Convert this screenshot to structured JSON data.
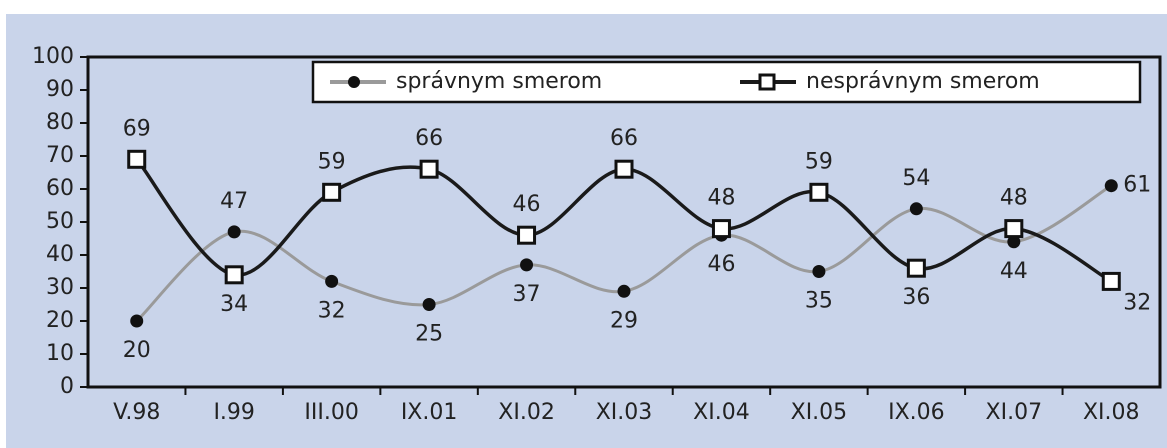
{
  "chart_data": {
    "type": "line",
    "categories": [
      "V.98",
      "I.99",
      "III.00",
      "IX.01",
      "XI.02",
      "XI.03",
      "XI.04",
      "XI.05",
      "IX.06",
      "XI.07",
      "XI.08"
    ],
    "series": [
      {
        "name": "správnym smerom",
        "color": "#9a9a9a",
        "values": [
          20,
          47,
          32,
          25,
          37,
          29,
          46,
          35,
          54,
          44,
          61
        ]
      },
      {
        "name": "nesprávnym smerom",
        "color": "#1a1a1a",
        "values": [
          69,
          34,
          59,
          66,
          46,
          66,
          48,
          59,
          36,
          48,
          32
        ]
      }
    ],
    "ylim": [
      0,
      100
    ],
    "yticks": [
      0,
      10,
      20,
      30,
      40,
      50,
      60,
      70,
      80,
      90,
      100
    ]
  }
}
